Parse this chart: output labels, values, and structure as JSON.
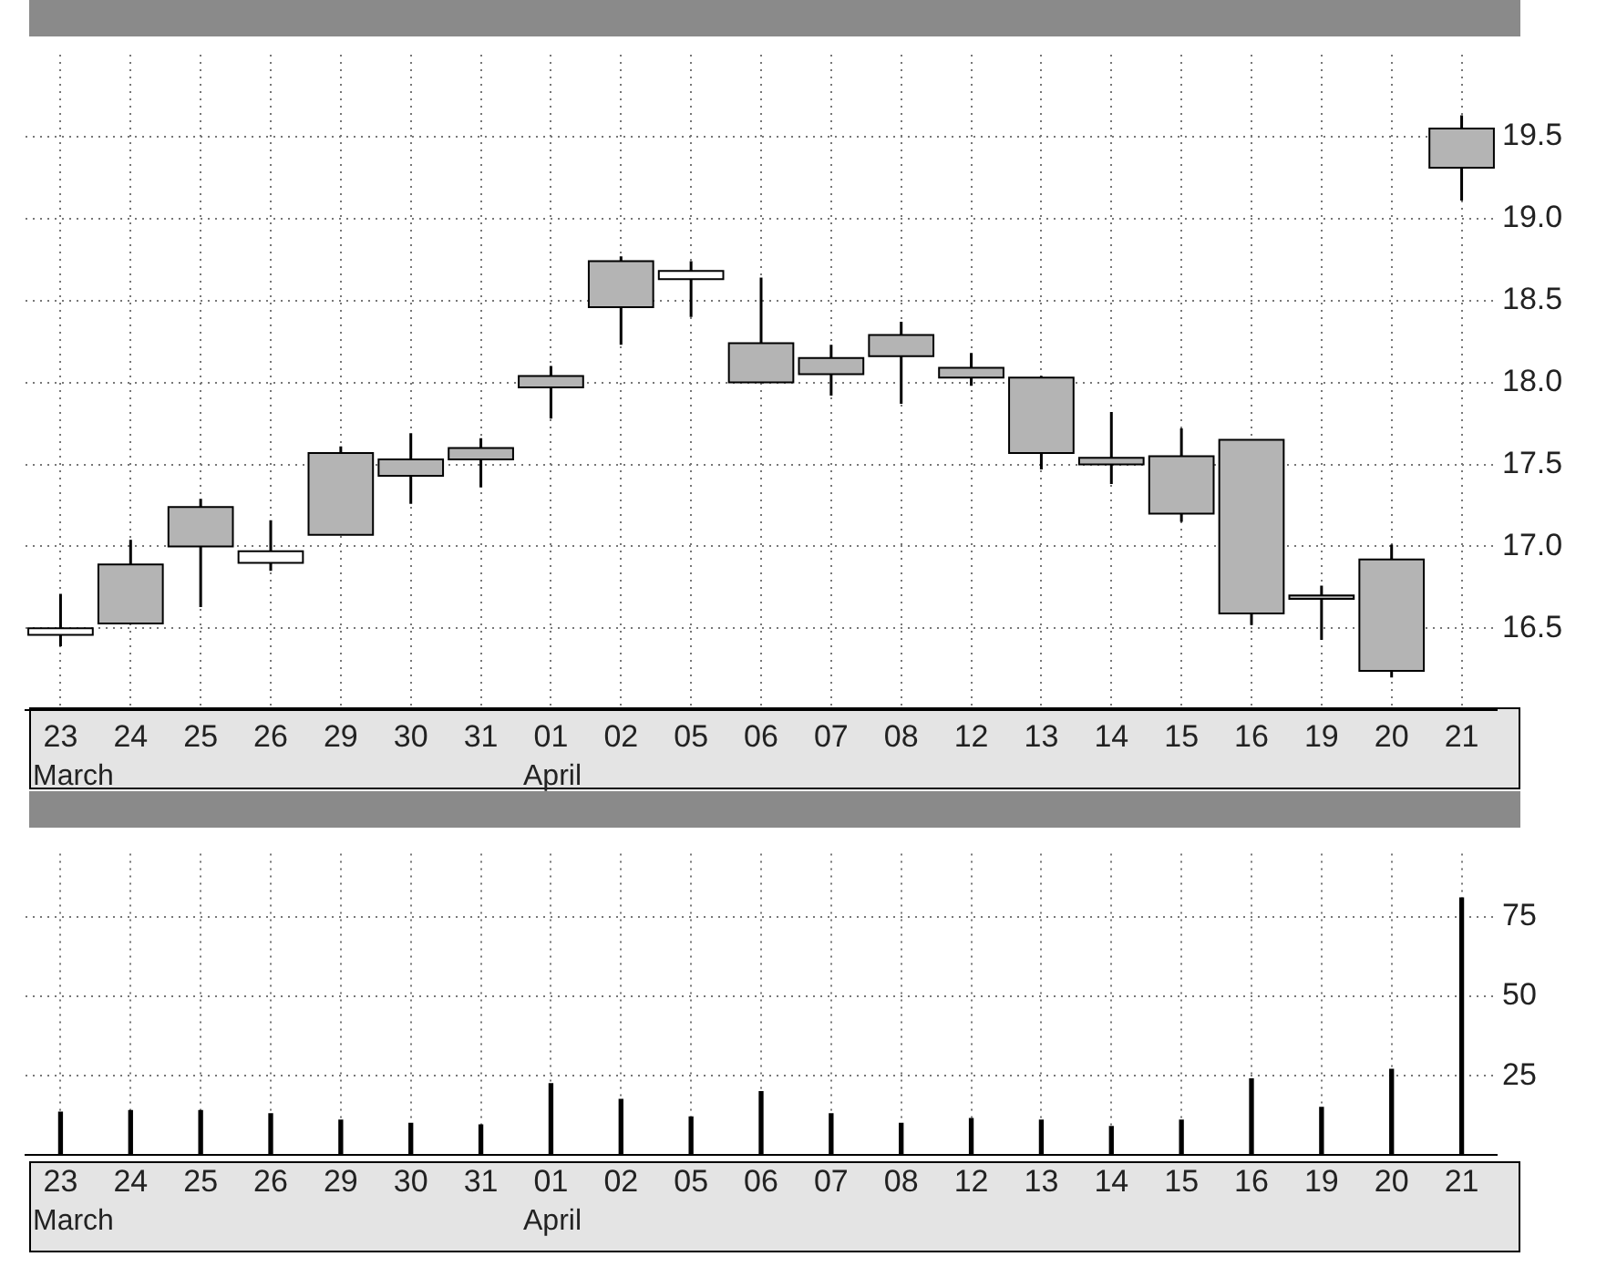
{
  "chart_data": [
    {
      "type": "candlestick",
      "categories": [
        "23",
        "24",
        "25",
        "26",
        "29",
        "30",
        "31",
        "01",
        "02",
        "05",
        "06",
        "07",
        "08",
        "12",
        "13",
        "14",
        "15",
        "16",
        "19",
        "20",
        "21"
      ],
      "ohlc": [
        [
          16.5,
          16.71,
          16.39,
          16.46
        ],
        [
          16.53,
          17.04,
          16.53,
          16.89
        ],
        [
          17.0,
          17.29,
          16.63,
          17.24
        ],
        [
          16.97,
          17.16,
          16.85,
          16.9
        ],
        [
          17.07,
          17.61,
          17.07,
          17.57
        ],
        [
          17.43,
          17.69,
          17.26,
          17.53
        ],
        [
          17.53,
          17.66,
          17.36,
          17.6
        ],
        [
          17.97,
          18.1,
          17.78,
          18.04
        ],
        [
          18.46,
          18.77,
          18.23,
          18.74
        ],
        [
          18.68,
          18.74,
          18.4,
          18.63
        ],
        [
          18.0,
          18.64,
          18.0,
          18.24
        ],
        [
          18.05,
          18.23,
          17.92,
          18.15
        ],
        [
          18.16,
          18.37,
          17.87,
          18.29
        ],
        [
          18.03,
          18.18,
          17.98,
          18.09
        ],
        [
          17.57,
          18.04,
          17.47,
          18.03
        ],
        [
          17.5,
          17.82,
          17.38,
          17.54
        ],
        [
          17.2,
          17.72,
          17.15,
          17.55
        ],
        [
          16.59,
          17.65,
          16.52,
          17.65
        ],
        [
          16.68,
          16.76,
          16.43,
          16.7
        ],
        [
          16.24,
          17.01,
          16.2,
          16.92
        ],
        [
          19.31,
          19.63,
          19.11,
          19.55
        ]
      ],
      "colors": [
        "#ffffff",
        "#b4b4b4",
        "#b4b4b4",
        "#ffffff",
        "#b4b4b4",
        "#b4b4b4",
        "#b4b4b4",
        "#b4b4b4",
        "#b4b4b4",
        "#ffffff",
        "#b4b4b4",
        "#b4b4b4",
        "#b4b4b4",
        "#b4b4b4",
        "#b4b4b4",
        "#b4b4b4",
        "#b4b4b4",
        "#b4b4b4",
        "#b4b4b4",
        "#b4b4b4",
        "#b4b4b4"
      ],
      "ylim": [
        16.0,
        20.0
      ],
      "yticks": [
        16.5,
        {
          "value": 17,
          "label": "17.0"
        },
        17.5,
        {
          "value": 18,
          "label": "18.0"
        },
        18.5,
        {
          "value": 19,
          "label": "19.0"
        },
        19.5
      ],
      "grid": true,
      "annotations": [
        "March",
        "April"
      ]
    },
    {
      "type": "bar",
      "categories": [
        "23",
        "24",
        "25",
        "26",
        "29",
        "30",
        "31",
        "01",
        "02",
        "05",
        "06",
        "07",
        "08",
        "12",
        "13",
        "14",
        "15",
        "16",
        "19",
        "20",
        "21"
      ],
      "values": [
        13.5,
        14,
        14,
        13,
        11,
        10,
        9.5,
        22.5,
        17.5,
        12,
        20,
        13,
        10,
        11.5,
        11,
        9,
        11,
        24,
        15,
        27,
        81
      ],
      "color": "#000000",
      "ylim": [
        0,
        95
      ],
      "yticks": [
        25,
        50,
        75
      ],
      "grid": true,
      "annotations": [
        "March",
        "April"
      ]
    }
  ]
}
